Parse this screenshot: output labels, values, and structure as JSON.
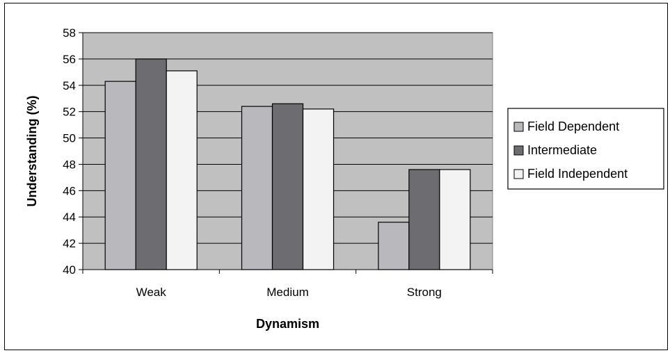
{
  "chart_data": {
    "type": "bar",
    "title": "",
    "xlabel": "Dynamism",
    "ylabel": "Understanding (%)",
    "categories": [
      "Weak",
      "Medium",
      "Strong"
    ],
    "ylim": [
      40,
      58
    ],
    "yticks": [
      40,
      42,
      44,
      46,
      48,
      50,
      52,
      54,
      56,
      58
    ],
    "grid": true,
    "legend_position": "right",
    "plot_background": "#c0c0c0",
    "series": [
      {
        "name": "Field Dependent",
        "color": "#b9b9bd",
        "values": [
          54.3,
          52.4,
          43.6
        ]
      },
      {
        "name": "Intermediate",
        "color": "#6d6d71",
        "values": [
          56.0,
          52.6,
          47.6
        ]
      },
      {
        "name": "Field Independent",
        "color": "#f3f3f3",
        "values": [
          55.1,
          52.2,
          47.6
        ]
      }
    ]
  }
}
